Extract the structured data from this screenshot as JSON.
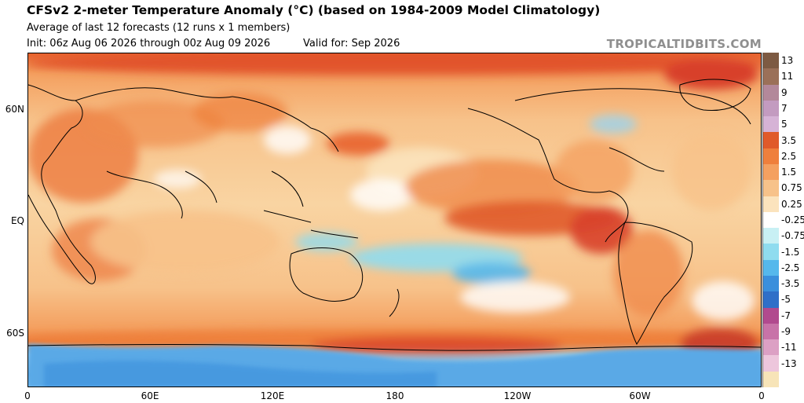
{
  "header": {
    "title": "CFSv2 2-meter Temperature Anomaly (°C) (based on 1984-2009 Model Climatology)",
    "subtitle": "Average of last 12 forecasts (12 runs x 1 members)",
    "init": "Init: 06z Aug 06 2026 through 00z Aug 09 2026",
    "valid": "Valid for: Sep 2026",
    "watermark": "TROPICALTIDBITS.COM"
  },
  "map": {
    "lat_labels": [
      "60N",
      "EQ",
      "60S"
    ],
    "lon_labels": [
      "0",
      "60E",
      "120E",
      "180",
      "120W",
      "60W",
      "0"
    ]
  },
  "colorbar": {
    "labels": [
      "13",
      "11",
      "9",
      "7",
      "5",
      "3.5",
      "2.5",
      "1.5",
      "0.75",
      "0.25",
      "-0.25",
      "-0.75",
      "-1.5",
      "-2.5",
      "-3.5",
      "-5",
      "-7",
      "-9",
      "-11",
      "-13"
    ],
    "colors": [
      "#7d5a42",
      "#9b7058",
      "#b3889a",
      "#c39bc0",
      "#d6b3d6",
      "#e05a2a",
      "#ef7f3c",
      "#f4a060",
      "#f7c28a",
      "#fbe3bd",
      "#ffffff",
      "#c8f0f4",
      "#8fdcef",
      "#55b8ec",
      "#3a8fdc",
      "#2f6fc8",
      "#b14a8e",
      "#c873a8",
      "#dca0c4",
      "#edc6dc",
      "#f7e4b8"
    ]
  }
}
